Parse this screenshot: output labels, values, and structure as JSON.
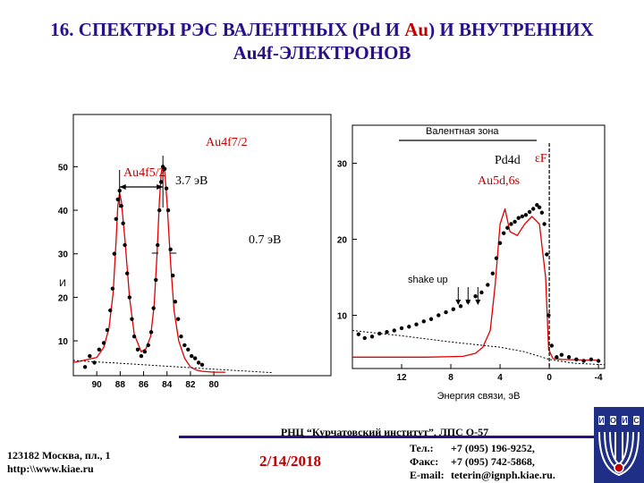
{
  "slide": {
    "title_line1_prefix": "16. СПЕКТРЫ РЭС ВАЛЕНТНЫХ (Pd И ",
    "title_line1_au": "Au",
    "title_line1_suffix": ") И ВНУТРЕННИХ",
    "title_line2": "Au4f-ЭЛЕКТРОНОВ"
  },
  "footer": {
    "center": "РНЦ “Курчатовский институт”,  ЛПС О-57",
    "address_line1": "123182 Москва, пл., 1",
    "address_line2": "http:\\\\www.kiae.ru",
    "date": "2/14/2018",
    "phone_label": "Тел.:",
    "phone": "+7 (095) 196-9252,",
    "fax_label": "Факс:",
    "fax": "+7 (095) 742-5868,",
    "email_label": "E-mail:",
    "email": "teterin@ignph.kiae.ru.",
    "logo_letters": [
      "И",
      "О",
      "И",
      "С"
    ]
  },
  "colors": {
    "title": "#2a0f8a",
    "accent_red": "#c00000",
    "fit_curve": "#e00000",
    "points": "#000000",
    "background_line": "#000000",
    "logo_bg": "#1f2f86"
  },
  "chart_data": [
    {
      "type": "scatter",
      "panel": "Au4f",
      "x_direction": "reversed",
      "xlim": [
        92,
        70
      ],
      "ylim": [
        2,
        62
      ],
      "x_ticks": [
        90,
        88,
        86,
        84,
        82,
        80
      ],
      "y_ticks": [
        10,
        20,
        30,
        40,
        50
      ],
      "ylabel": "И",
      "annotations": {
        "peak_7_2": "Au4f7/2",
        "peak_5_2": "Au4f5/2",
        "splitting": "3.7 эВ",
        "width": "0.7 эВ"
      },
      "series": [
        {
          "kind": "fit",
          "x": [
            92,
            90,
            89.4,
            88.95,
            88.6,
            88.35,
            88.2,
            88.05,
            87.9,
            87.6,
            87.2,
            86.8,
            86.2,
            85.8,
            85.4,
            85.1,
            84.85,
            84.65,
            84.5,
            84.35,
            84.2,
            84.0,
            83.7,
            83.4,
            83.0,
            82.5,
            82.0,
            81.5,
            81.0,
            80.0,
            79.0
          ],
          "y": [
            5.0,
            6.2,
            8.5,
            13.0,
            21.0,
            33.0,
            41.0,
            44.0,
            42.0,
            33.5,
            20.0,
            11.5,
            7.5,
            8.2,
            11.0,
            18.0,
            30.0,
            42.0,
            48.5,
            50.5,
            49.0,
            42.0,
            28.0,
            17.0,
            10.0,
            6.0,
            4.0,
            3.3,
            3.0,
            2.8,
            2.8
          ]
        },
        {
          "kind": "data",
          "x": [
            91.0,
            90.6,
            90.2,
            89.8,
            89.4,
            89.1,
            88.85,
            88.65,
            88.5,
            88.35,
            88.2,
            88.05,
            87.9,
            87.75,
            87.6,
            87.4,
            87.2,
            87.0,
            86.8,
            86.5,
            86.2,
            85.9,
            85.6,
            85.35,
            85.15,
            84.95,
            84.8,
            84.65,
            84.5,
            84.35,
            84.2,
            84.05,
            83.9,
            83.7,
            83.5,
            83.3,
            83.05,
            82.8,
            82.5,
            82.2,
            81.9,
            81.6,
            81.3,
            81.0
          ],
          "y": [
            4.0,
            6.5,
            5.0,
            8.0,
            9.5,
            12.5,
            17.0,
            22.0,
            30.0,
            38.0,
            42.5,
            44.5,
            41.0,
            37.0,
            32.0,
            25.5,
            20.0,
            15.0,
            11.0,
            8.0,
            6.5,
            7.5,
            9.0,
            12.0,
            17.5,
            24.0,
            32.0,
            40.0,
            46.5,
            50.0,
            49.5,
            45.0,
            40.0,
            31.0,
            25.0,
            19.0,
            15.0,
            11.0,
            9.0,
            8.0,
            6.5,
            6.0,
            5.0,
            4.5
          ]
        },
        {
          "kind": "background",
          "x": [
            92,
            89,
            86,
            83,
            80,
            77,
            75
          ],
          "y": [
            5.5,
            5.0,
            4.5,
            4.0,
            3.5,
            3.0,
            2.7
          ]
        }
      ]
    },
    {
      "type": "scatter",
      "panel": "valence",
      "x_direction": "reversed",
      "xlim": [
        16,
        -4.5
      ],
      "ylim": [
        3,
        35
      ],
      "x_ticks": [
        12,
        8,
        4,
        0,
        -4
      ],
      "y_ticks": [
        10,
        20,
        30
      ],
      "xlabel": "Энергия связи, эВ",
      "annotations": {
        "band": "Валентная зона",
        "pd": "Pd4d",
        "au": "Au5d,6s",
        "fermi": "εF",
        "shake": "shake up"
      },
      "fermi_level": 0,
      "shake_up_positions": [
        7.4,
        6.6,
        5.8
      ],
      "series": [
        {
          "kind": "fit",
          "x": [
            16,
            10,
            7,
            6,
            5.4,
            4.8,
            4.4,
            4.0,
            3.6,
            3.2,
            2.6,
            2.0,
            1.4,
            0.8,
            0.3,
            0.05,
            -0.3,
            -1,
            -3,
            -4
          ],
          "y": [
            4.5,
            4.5,
            4.6,
            5.0,
            5.8,
            8.0,
            14.0,
            22.0,
            24.0,
            21.0,
            20.5,
            22.0,
            23.0,
            22.0,
            15.0,
            5.5,
            4.3,
            4.2,
            4.1,
            4.1
          ]
        },
        {
          "kind": "data",
          "x": [
            15.5,
            15.0,
            14.4,
            13.8,
            13.2,
            12.6,
            12.0,
            11.4,
            10.8,
            10.2,
            9.6,
            9.0,
            8.4,
            7.8,
            7.2,
            6.6,
            6.0,
            5.5,
            5.0,
            4.6,
            4.3,
            4.0,
            3.7,
            3.4,
            3.1,
            2.8,
            2.5,
            2.2,
            1.9,
            1.6,
            1.3,
            1.0,
            0.8,
            0.6,
            0.4,
            0.2,
            0.05,
            -0.2,
            -0.6,
            -1.0,
            -1.6,
            -2.2,
            -2.8,
            -3.4,
            -4.0
          ],
          "y": [
            7.5,
            7.0,
            7.2,
            7.6,
            7.8,
            8.0,
            8.3,
            8.5,
            8.8,
            9.2,
            9.5,
            10.0,
            10.4,
            10.8,
            11.2,
            11.8,
            12.5,
            13.0,
            14.0,
            15.5,
            17.5,
            19.5,
            20.8,
            21.5,
            22.0,
            22.3,
            22.8,
            23.0,
            23.2,
            23.6,
            24.0,
            24.5,
            24.2,
            23.5,
            22.0,
            18.0,
            10.0,
            6.0,
            4.5,
            4.8,
            4.5,
            4.2,
            4.0,
            4.2,
            4.0
          ]
        },
        {
          "kind": "background",
          "x": [
            16,
            12,
            8,
            4,
            2,
            0,
            -2,
            -4.5
          ],
          "y": [
            8.0,
            7.3,
            6.5,
            5.8,
            5.2,
            4.2,
            3.7,
            3.5
          ]
        }
      ]
    }
  ]
}
